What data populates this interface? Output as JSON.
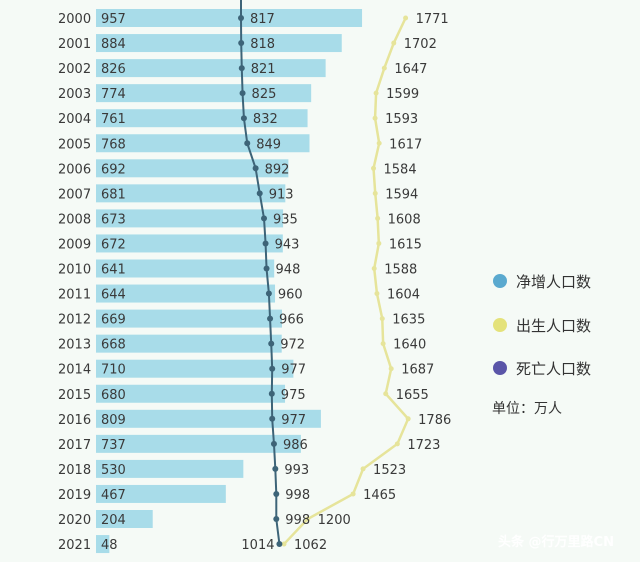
{
  "chart_data": {
    "type": "bar",
    "categories": [
      "2000",
      "2001",
      "2002",
      "2003",
      "2004",
      "2005",
      "2006",
      "2007",
      "2008",
      "2009",
      "2010",
      "2011",
      "2012",
      "2013",
      "2014",
      "2015",
      "2016",
      "2017",
      "2018",
      "2019",
      "2020",
      "2021"
    ],
    "series": [
      {
        "name": "净增人口数",
        "type": "bar",
        "color": "#a8dce9",
        "values": [
          957,
          884,
          826,
          774,
          761,
          768,
          692,
          681,
          673,
          672,
          641,
          644,
          669,
          668,
          710,
          680,
          809,
          737,
          530,
          467,
          204,
          48
        ]
      },
      {
        "name": "出生人口数",
        "type": "line",
        "color": "#e6e49a",
        "values": [
          1771,
          1702,
          1647,
          1599,
          1593,
          1617,
          1584,
          1594,
          1608,
          1615,
          1588,
          1604,
          1635,
          1640,
          1687,
          1655,
          1786,
          1723,
          1523,
          1465,
          1200,
          1062
        ]
      },
      {
        "name": "死亡人口数",
        "type": "line",
        "color": "#3d6478",
        "values": [
          817,
          818,
          821,
          825,
          832,
          849,
          892,
          913,
          935,
          943,
          948,
          960,
          966,
          972,
          977,
          975,
          977,
          986,
          993,
          998,
          998,
          1014
        ]
      }
    ],
    "legend_position": "right",
    "unit": "单位：万人"
  },
  "legend": {
    "items": [
      {
        "label": "净增人口数",
        "color": "#5aa9cf"
      },
      {
        "label": "出生人口数",
        "color": "#e4e27a"
      },
      {
        "label": "死亡人口数",
        "color": "#5a55a8"
      }
    ],
    "unit": "单位：万人"
  },
  "watermark": "头条 @行万里路CN"
}
